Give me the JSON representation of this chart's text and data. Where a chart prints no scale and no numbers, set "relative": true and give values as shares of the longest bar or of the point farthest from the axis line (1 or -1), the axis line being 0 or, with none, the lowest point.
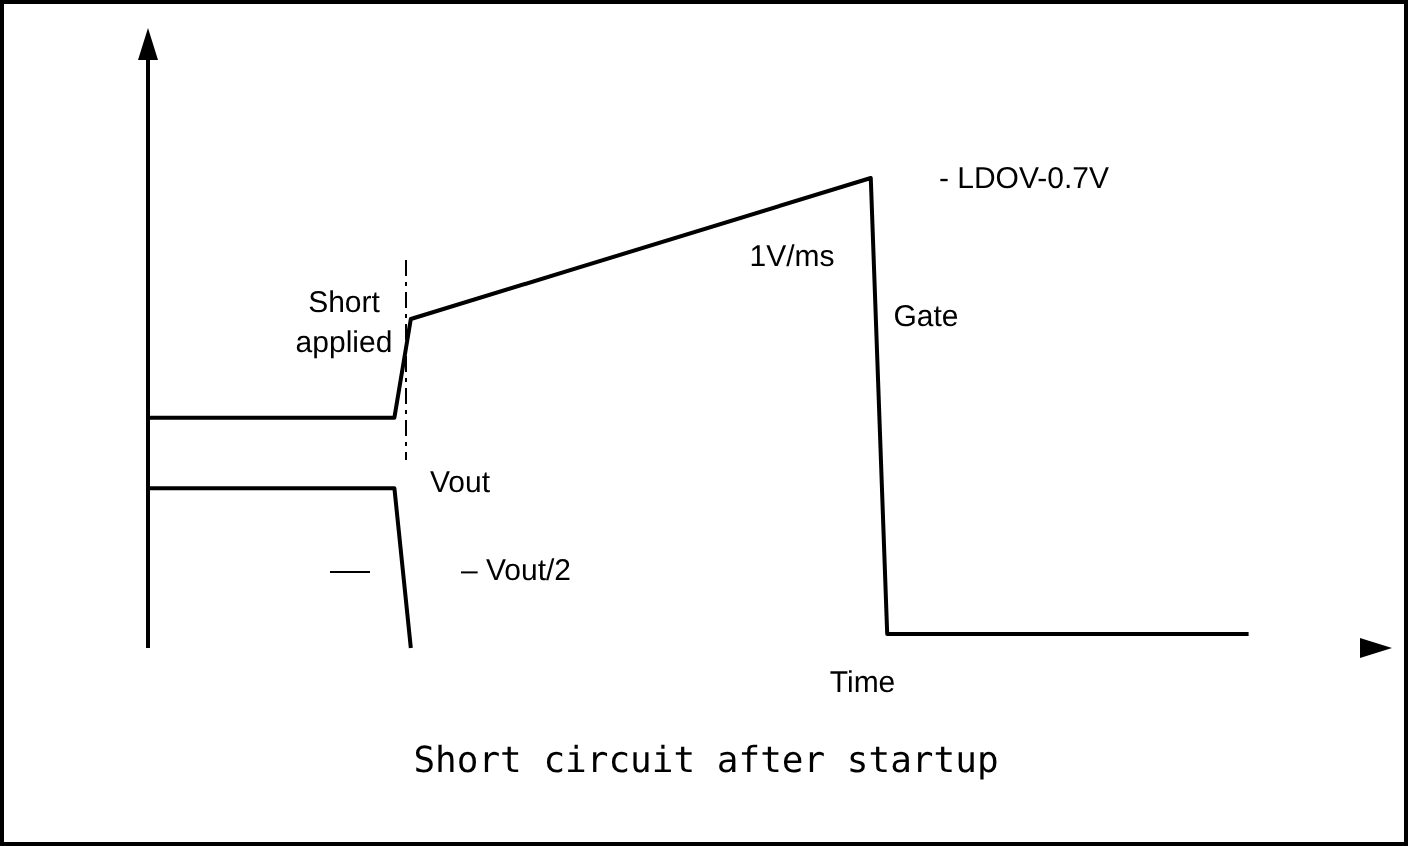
{
  "chart_data": {
    "type": "line",
    "title": "Short circuit after startup",
    "xlabel": "Time",
    "relative": true,
    "marker": "none",
    "line_style": "solid",
    "categories": [
      null,
      null,
      null,
      null,
      null,
      null,
      null,
      null,
      null,
      null,
      null,
      null,
      null,
      null,
      null,
      null,
      null,
      null,
      null,
      null,
      null,
      null,
      null,
      null,
      null,
      null,
      null,
      null,
      null,
      null,
      null,
      null,
      null,
      null,
      null,
      null,
      null,
      null,
      null,
      null,
      null,
      null,
      null,
      null,
      null,
      null,
      null,
      null,
      null,
      null,
      null,
      null,
      null,
      null,
      null,
      null,
      null,
      null,
      null,
      null,
      null,
      null,
      null,
      null,
      null,
      null,
      null,
      null,
      null,
      null,
      null,
      null,
      null,
      null,
      null,
      null
    ],
    "series": [
      {
        "color": "#000000",
        "values": [
          0.49,
          null,
          null,
          null,
          null,
          null,
          null,
          null,
          null,
          null,
          null,
          null,
          null,
          null,
          null,
          0.49,
          0.7,
          null,
          null,
          null,
          null,
          null,
          null,
          null,
          null,
          null,
          null,
          null,
          null,
          null,
          null,
          null,
          null,
          null,
          null,
          null,
          null,
          null,
          null,
          null,
          null,
          null,
          null,
          null,
          1,
          0.03,
          null,
          null,
          null,
          null,
          null,
          null,
          null,
          null,
          null,
          null,
          null,
          null,
          null,
          null,
          null,
          null,
          null,
          null,
          null,
          null,
          null,
          0.03,
          null,
          null,
          null,
          null,
          null,
          null,
          null,
          null
        ]
      },
      {
        "color": "#000000",
        "values": [
          0.34,
          null,
          null,
          null,
          null,
          null,
          null,
          null,
          null,
          null,
          null,
          null,
          null,
          null,
          null,
          0.34,
          0,
          null,
          null,
          null,
          null,
          null,
          null,
          null,
          null,
          null,
          null,
          null,
          null,
          null,
          null,
          null,
          null,
          null,
          null,
          null,
          null,
          null,
          null,
          null,
          null,
          null,
          null,
          null,
          null,
          null,
          null,
          null,
          null,
          null,
          null,
          null,
          null,
          null,
          null,
          null,
          null,
          null,
          null,
          null,
          null,
          null,
          null,
          null,
          null,
          null,
          null,
          null,
          null,
          null,
          null,
          null,
          null,
          null,
          null,
          null
        ]
      }
    ],
    "annotations": [
      "Short applied",
      "1V/ms",
      "Gate",
      "- LDOV-0.7V",
      "Vout",
      "– Vout/2"
    ]
  }
}
